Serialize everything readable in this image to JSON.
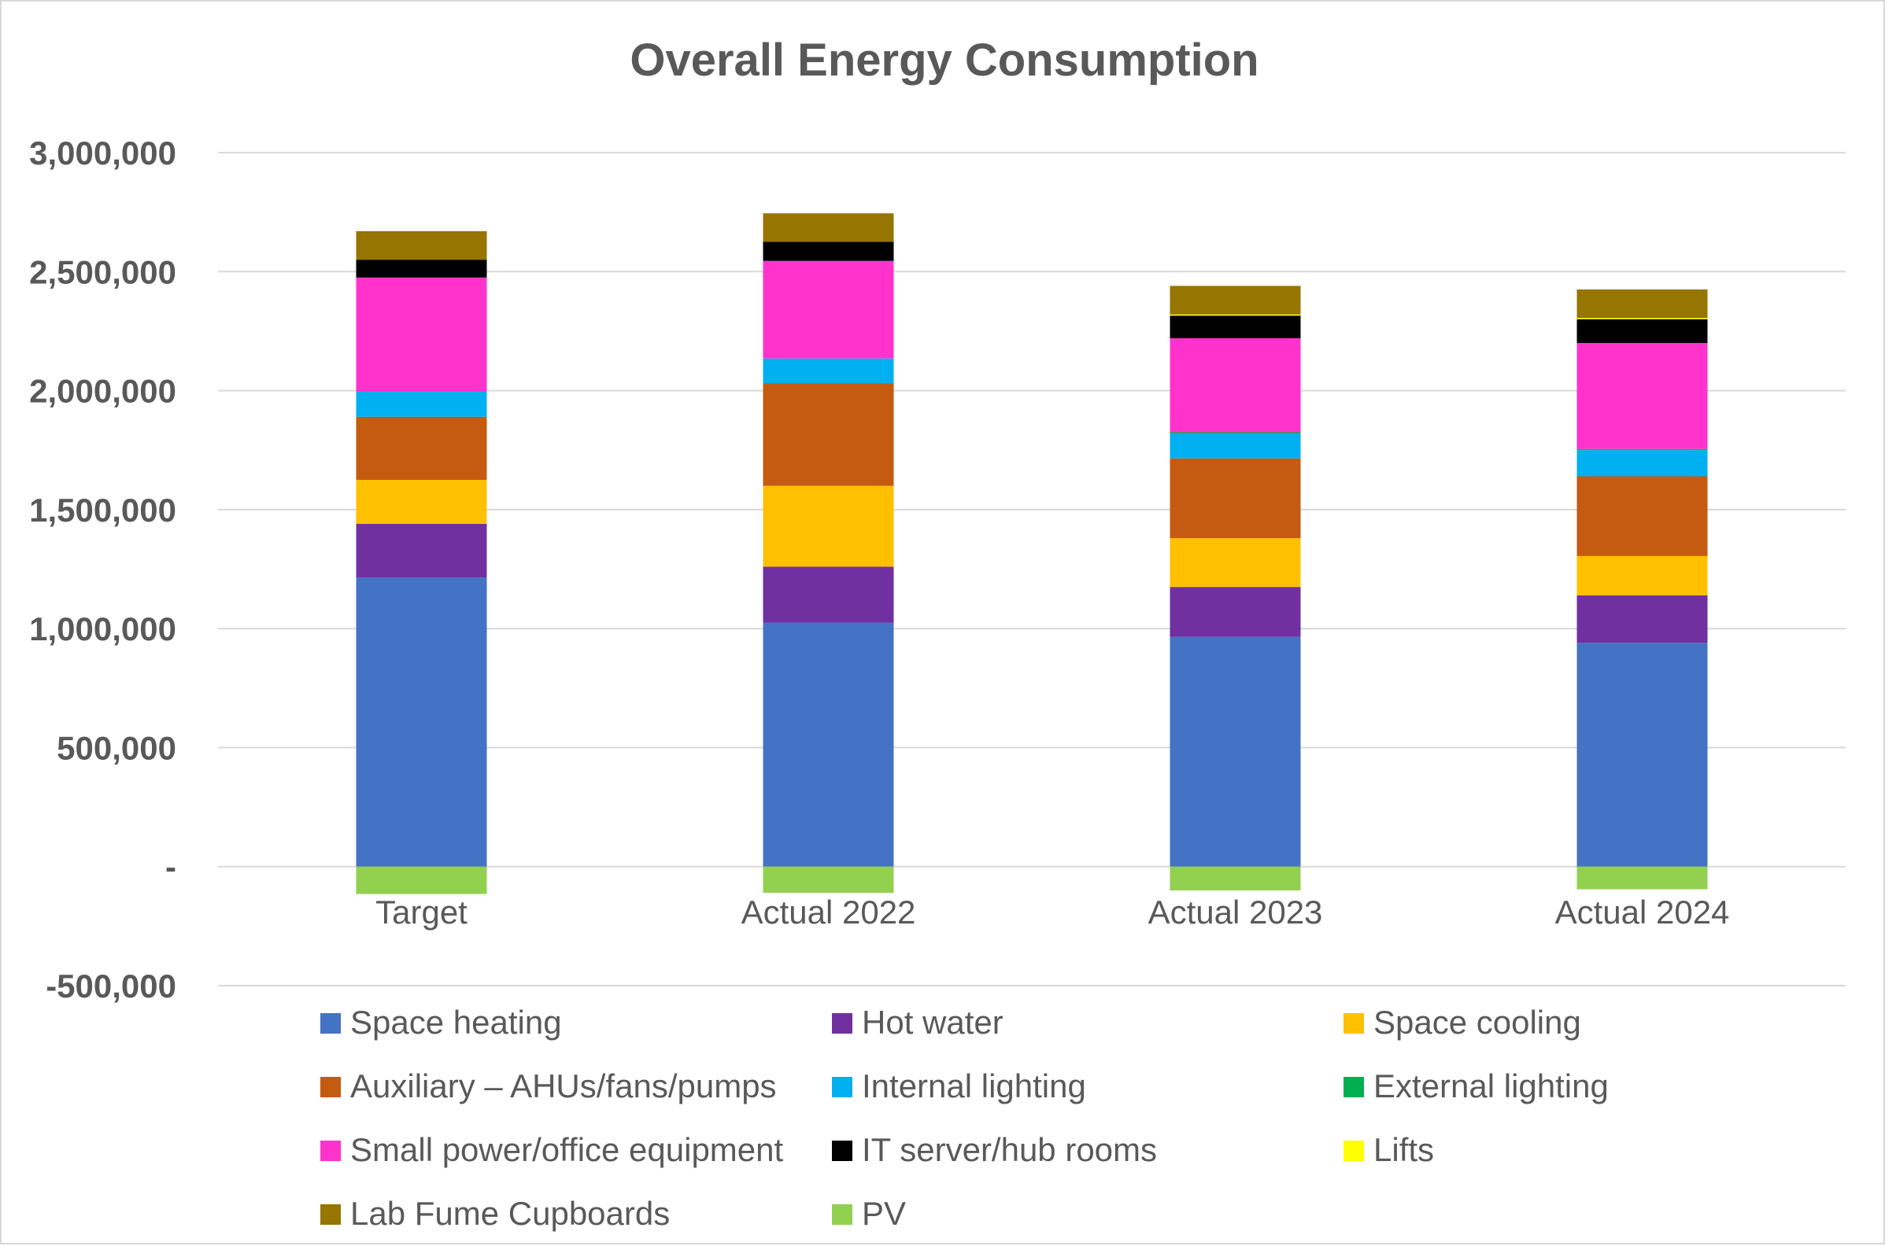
{
  "chart_data": {
    "type": "bar",
    "stacked": true,
    "title": "Overall Energy Consumption",
    "xlabel": "",
    "ylabel": "",
    "ylim": [
      -500000,
      3000000
    ],
    "yticks": [
      3000000,
      2500000,
      2000000,
      1500000,
      1000000,
      500000,
      0,
      -500000
    ],
    "ytick_labels": [
      "3,000,000",
      "2,500,000",
      "2,000,000",
      "1,500,000",
      "1,000,000",
      "500,000",
      "-",
      "-500,000"
    ],
    "grid": true,
    "legend_position": "bottom",
    "categories": [
      "Target",
      "Actual 2022",
      "Actual 2023",
      "Actual 2024"
    ],
    "series": [
      {
        "name": "Space heating",
        "color": "#4472C4",
        "values": [
          1215000,
          1025000,
          965000,
          940000
        ]
      },
      {
        "name": "Hot water",
        "color": "#7030A0",
        "values": [
          225000,
          235000,
          210000,
          200000
        ]
      },
      {
        "name": "Space cooling",
        "color": "#FFC000",
        "values": [
          185000,
          340000,
          205000,
          165000
        ]
      },
      {
        "name": "Auxiliary – AHUs/fans/pumps",
        "color": "#C55A11",
        "values": [
          265000,
          430000,
          335000,
          335000
        ]
      },
      {
        "name": "Internal lighting",
        "color": "#00B0F0",
        "values": [
          105000,
          105000,
          105000,
          110000
        ]
      },
      {
        "name": "External lighting",
        "color": "#00B050",
        "values": [
          0,
          0,
          5000,
          5000
        ]
      },
      {
        "name": "Small power/office equipment",
        "color": "#FF33CC",
        "values": [
          480000,
          410000,
          395000,
          445000
        ]
      },
      {
        "name": "IT server/hub rooms",
        "color": "#000000",
        "values": [
          75000,
          80000,
          95000,
          100000
        ]
      },
      {
        "name": "Lifts",
        "color": "#FFFF00",
        "values": [
          0,
          0,
          5000,
          5000
        ]
      },
      {
        "name": "Lab Fume Cupboards",
        "color": "#967500",
        "values": [
          120000,
          120000,
          120000,
          120000
        ]
      },
      {
        "name": "PV",
        "color": "#92D050",
        "values": [
          -115000,
          -110000,
          -100000,
          -95000
        ]
      }
    ]
  }
}
